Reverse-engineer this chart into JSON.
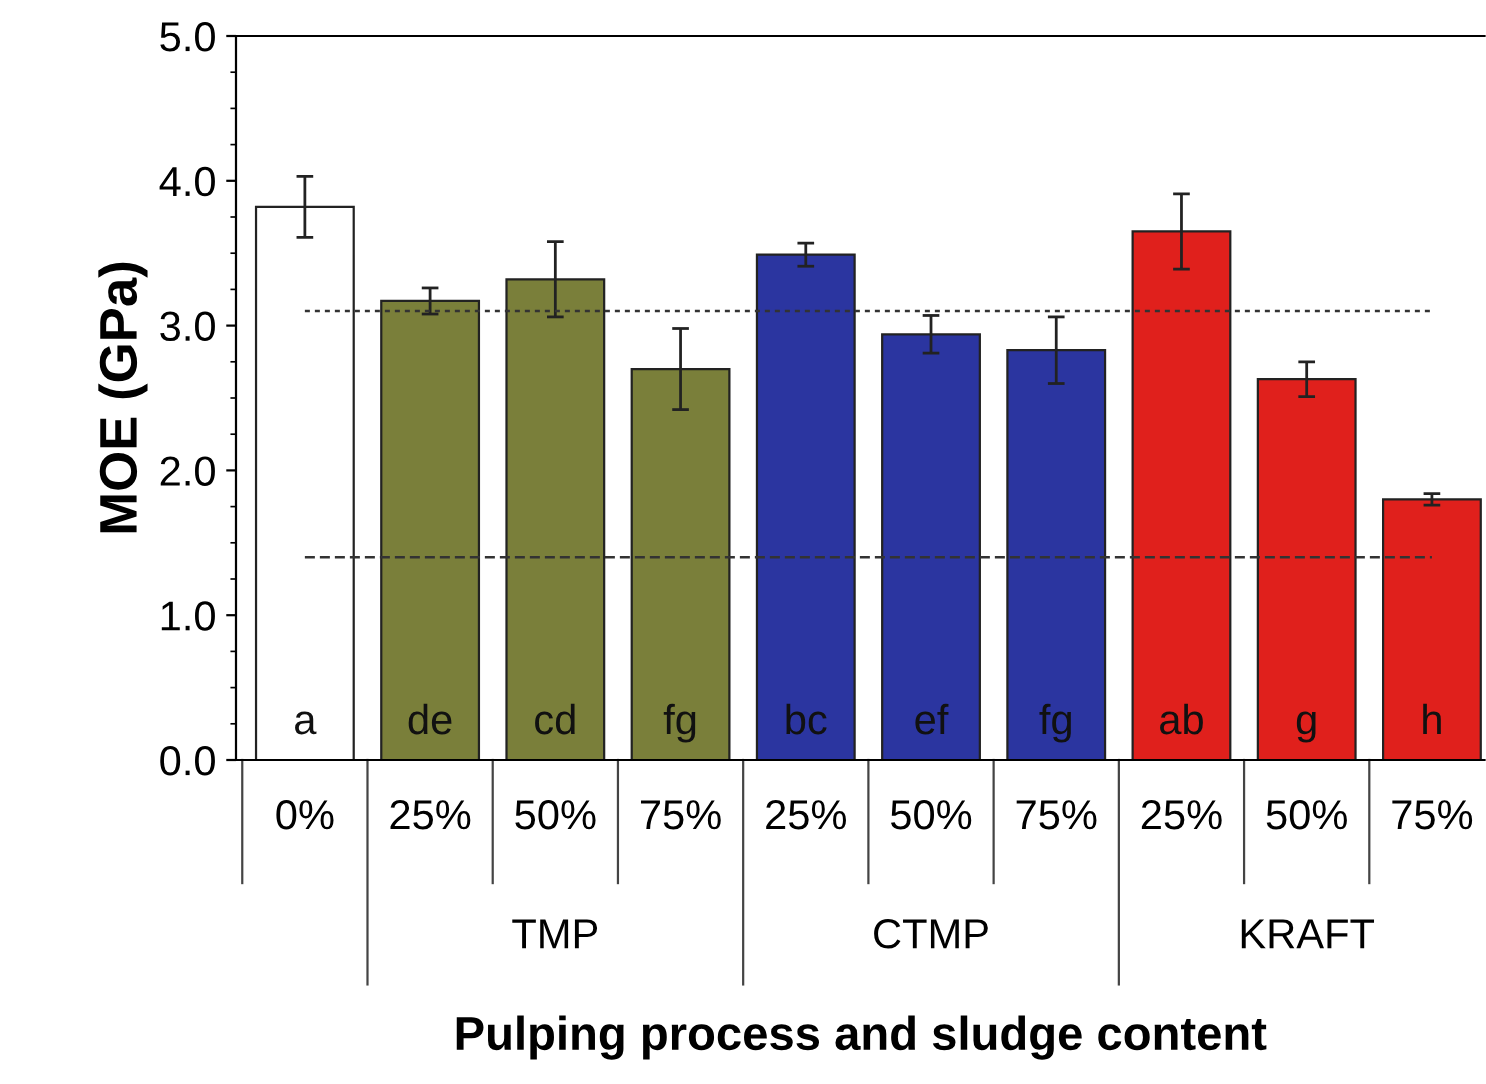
{
  "chart_data": {
    "type": "bar",
    "xlabel": "Pulping process and sludge content",
    "ylabel": "MOE (GPa)",
    "categories": [
      "0%",
      "25%",
      "50%",
      "75%",
      "25%",
      "50%",
      "75%",
      "25%",
      "50%",
      "75%"
    ],
    "values": [
      3.82,
      3.17,
      3.32,
      2.7,
      3.49,
      2.94,
      2.83,
      3.65,
      2.63,
      1.8
    ],
    "errors": [
      0.21,
      0.09,
      0.26,
      0.28,
      0.08,
      0.13,
      0.23,
      0.26,
      0.12,
      0.04
    ],
    "colors": [
      "#ffffff",
      "#7a7f3a",
      "#7a7f3a",
      "#7a7f3a",
      "#2b35a0",
      "#2b35a0",
      "#2b35a0",
      "#e0201c",
      "#e0201c",
      "#e0201c"
    ],
    "value_labels": [
      "a",
      "de",
      "cd",
      "fg",
      "bc",
      "ef",
      "fg",
      "ab",
      "g",
      "h"
    ],
    "annotations": [
      "TMP",
      "CTMP",
      "KRAFT"
    ],
    "ref_lines": [
      {
        "axis": "y",
        "value": 3.1,
        "label": null,
        "line_style": "dotted",
        "color": "#333333"
      },
      {
        "axis": "y",
        "value": 1.4,
        "label": null,
        "line_style": "dashed",
        "color": "#333333"
      }
    ],
    "ylim": [
      0,
      5
    ],
    "yticks": [
      {
        "value": 0,
        "label": "0.0"
      },
      {
        "value": 1,
        "label": "1.0"
      },
      {
        "value": 2,
        "label": "2.0"
      },
      {
        "value": 3,
        "label": "3.0"
      },
      {
        "value": 4,
        "label": "4.0"
      },
      {
        "value": 5,
        "label": "5.0"
      }
    ],
    "grid": false,
    "legend": false
  }
}
